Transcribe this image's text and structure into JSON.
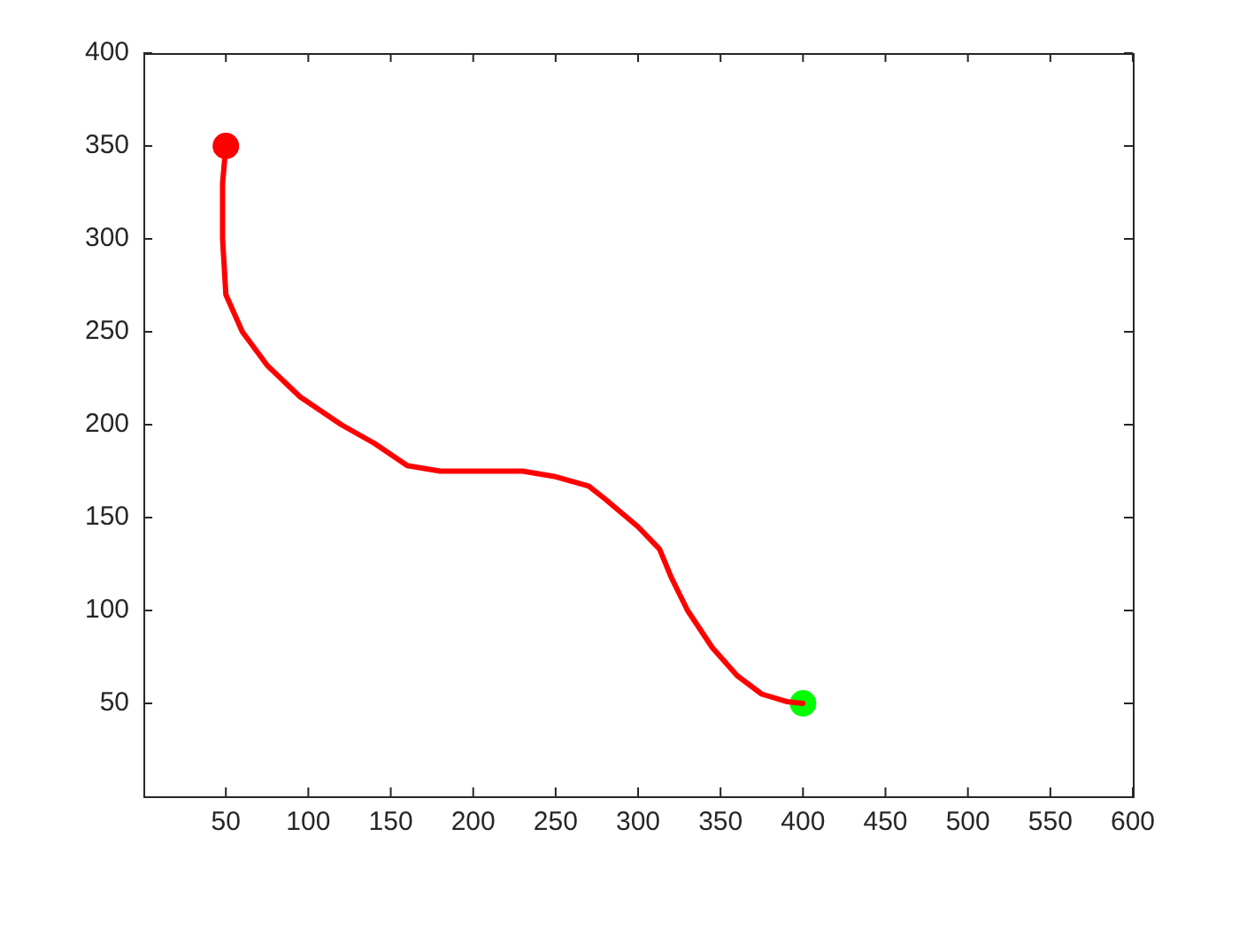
{
  "chart_data": {
    "type": "line",
    "xlim": [
      0,
      600
    ],
    "xticks": [
      50,
      100,
      150,
      200,
      250,
      300,
      350,
      400,
      450,
      500,
      550,
      600
    ],
    "ylim": [
      0,
      400
    ],
    "yticks": [
      50,
      100,
      150,
      200,
      250,
      300,
      350,
      400
    ],
    "grid": false,
    "legend": false,
    "series": [
      {
        "color": "#ff0000",
        "marker": "none",
        "line_style": "solid",
        "x": [
          50,
          48,
          48,
          50,
          60,
          75,
          95,
          120,
          140,
          160,
          180,
          200,
          230,
          250,
          270,
          280,
          300,
          313,
          320,
          330,
          345,
          360,
          375,
          390,
          400
        ],
        "values": [
          350,
          330,
          300,
          270,
          250,
          232,
          215,
          200,
          190,
          178,
          175,
          175,
          175,
          172,
          167,
          160,
          145,
          133,
          118,
          100,
          80,
          65,
          55,
          51,
          50
        ]
      },
      {
        "type": "scatter",
        "color": "#ff0000",
        "marker": "circle",
        "x": [
          50
        ],
        "values": [
          350
        ]
      },
      {
        "type": "scatter",
        "color": "#00ff00",
        "marker": "circle",
        "x": [
          400
        ],
        "values": [
          50
        ]
      }
    ]
  }
}
